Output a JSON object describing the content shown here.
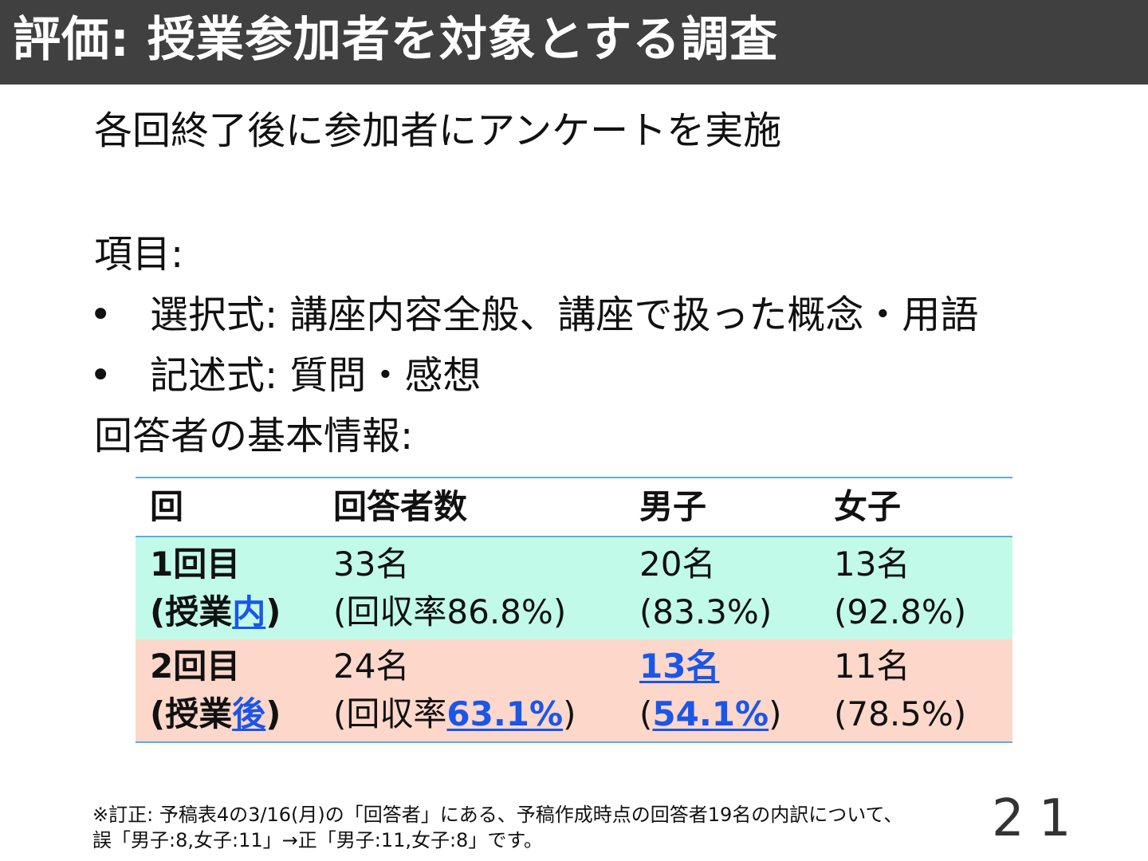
{
  "title": "評価: 授業参加者を対象とする調査",
  "intro": "各回終了後に参加者にアンケートを実施",
  "items_label": "項目:",
  "bullets": [
    {
      "marker": "•",
      "text": "選択式: 講座内容全般、講座で扱った概念・用語"
    },
    {
      "marker": "•",
      "text": "記述式: 質問・感想"
    }
  ],
  "info_label": "回答者の基本情報:",
  "table": {
    "headers": [
      "回",
      "回答者数",
      "男子",
      "女子"
    ],
    "rows": [
      {
        "round_line1": "1回目",
        "round_line2_open": "(授業",
        "round_line2_link": "内",
        "round_line2_close": ")",
        "respondents_line1": "33名",
        "respondents_line2_prefix": "(回収率",
        "respondents_line2_value": "86.8%",
        "respondents_line2_close": ")",
        "male_line1": "20名",
        "male_line2_open": "(",
        "male_line2_value": "83.3%",
        "male_line2_close": ")",
        "female_line1": "13名",
        "female_line2": "(92.8%)"
      },
      {
        "round_line1": "2回目",
        "round_line2_open": "(授業",
        "round_line2_link": "後",
        "round_line2_close": ")",
        "respondents_line1": "24名",
        "respondents_line2_prefix": "(回収率",
        "respondents_line2_value": "63.1%",
        "respondents_line2_close": ")",
        "male_line1": "13名",
        "male_line2_open": "(",
        "male_line2_value": "54.1%",
        "male_line2_close": ")",
        "female_line1": "11名",
        "female_line2": "(78.5%)"
      }
    ]
  },
  "note": {
    "line1": "※訂正: 予稿表4の3/16(月)の「回答者」にある、予稿作成時点の回答者19名の内訳について、",
    "line2": "誤「男子:8,女子:11」→正「男子:11,女子:8」です。"
  },
  "page_number": "21",
  "colors": {
    "title_bar": "#404040",
    "row1_bg": "#c1fae8",
    "row2_bg": "#fcd7ca",
    "table_border": "#5aaee0",
    "link": "#1a56e8"
  }
}
